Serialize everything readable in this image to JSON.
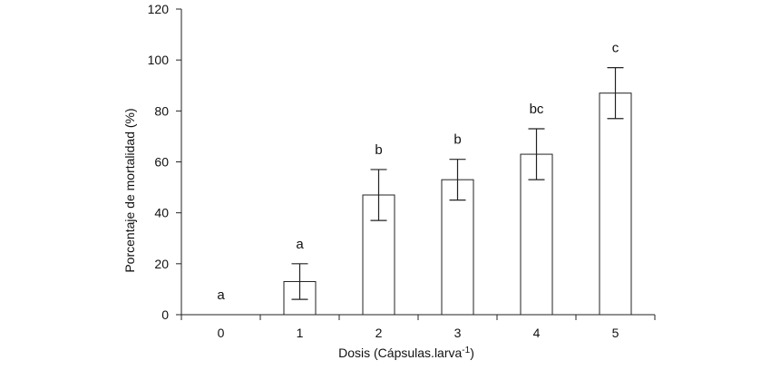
{
  "chart_data": {
    "type": "bar",
    "title": "",
    "xlabel": "Dosis (Cápsulas.larva",
    "xlabel_superscript": "-1",
    "xlabel_suffix": ")",
    "ylabel": "Porcentaje de mortalidad (%)",
    "ylim": [
      0,
      120
    ],
    "yticks": [
      0,
      20,
      40,
      60,
      80,
      100,
      120
    ],
    "categories": [
      "0",
      "1",
      "2",
      "3",
      "4",
      "5"
    ],
    "values": [
      0,
      13,
      47,
      53,
      63,
      87
    ],
    "error": [
      0,
      7,
      10,
      8,
      10,
      10
    ],
    "significance": [
      "a",
      "a",
      "b",
      "b",
      "bc",
      "c"
    ],
    "grid": false,
    "legend": "none"
  }
}
